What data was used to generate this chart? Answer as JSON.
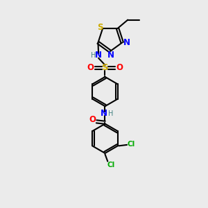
{
  "background_color": "#ebebeb",
  "atom_colors": {
    "C": "#000000",
    "H": "#408080",
    "N": "#0000ff",
    "O": "#ff0000",
    "S": "#ccaa00",
    "Cl": "#00aa00"
  },
  "figsize": [
    3.0,
    3.0
  ],
  "dpi": 100,
  "xlim": [
    0,
    10
  ],
  "ylim": [
    0,
    10
  ]
}
